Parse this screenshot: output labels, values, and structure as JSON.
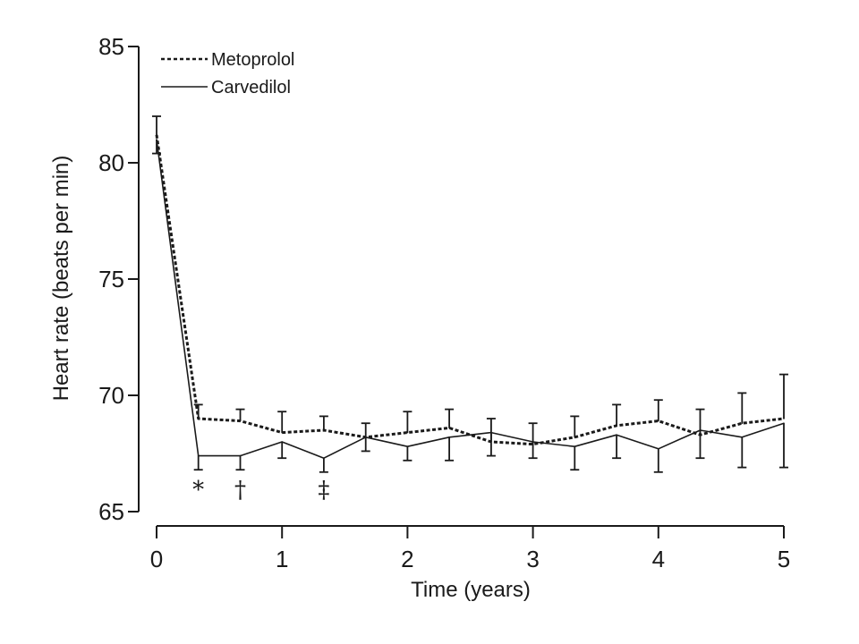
{
  "chart_data": {
    "type": "line",
    "xlabel": "Time (years)",
    "ylabel": "Heart rate (beats per min)",
    "xlim": [
      0,
      5
    ],
    "ylim": [
      65,
      85
    ],
    "x_ticks": [
      "0",
      "1",
      "2",
      "3",
      "4",
      "5"
    ],
    "y_ticks": [
      "65",
      "70",
      "75",
      "80",
      "85"
    ],
    "grid": false,
    "legend_position": "top-left",
    "series": [
      {
        "name": "Metoprolol",
        "style": "dashed",
        "x": [
          0,
          0.333,
          0.667,
          1.0,
          1.333,
          1.667,
          2.0,
          2.333,
          2.667,
          3.0,
          3.333,
          3.667,
          4.0,
          4.333,
          4.667,
          5.0
        ],
        "y": [
          81.2,
          69.0,
          68.9,
          68.4,
          68.5,
          68.2,
          68.4,
          68.6,
          68.0,
          67.9,
          68.2,
          68.7,
          68.9,
          68.3,
          68.8,
          69.0
        ],
        "upper": [
          82.0,
          69.6,
          69.4,
          69.3,
          69.1,
          68.8,
          69.3,
          69.4,
          69.0,
          68.8,
          69.1,
          69.6,
          69.8,
          69.4,
          70.1,
          70.9
        ]
      },
      {
        "name": "Carvedilol",
        "style": "solid",
        "x": [
          0,
          0.333,
          0.667,
          1.0,
          1.333,
          1.667,
          2.0,
          2.333,
          2.667,
          3.0,
          3.333,
          3.667,
          4.0,
          4.333,
          4.667,
          5.0
        ],
        "y": [
          81.0,
          67.4,
          67.4,
          68.0,
          67.3,
          68.2,
          67.8,
          68.2,
          68.4,
          68.0,
          67.8,
          68.3,
          67.7,
          68.5,
          68.2,
          68.8
        ],
        "lower": [
          80.4,
          66.8,
          66.8,
          67.3,
          66.7,
          67.6,
          67.2,
          67.2,
          67.4,
          67.3,
          66.8,
          67.3,
          66.7,
          67.3,
          66.9,
          66.9
        ]
      }
    ],
    "annotations": [
      {
        "text": "*",
        "x": 0.333
      },
      {
        "text": "†",
        "x": 0.667
      },
      {
        "text": "‡",
        "x": 1.333
      }
    ]
  }
}
